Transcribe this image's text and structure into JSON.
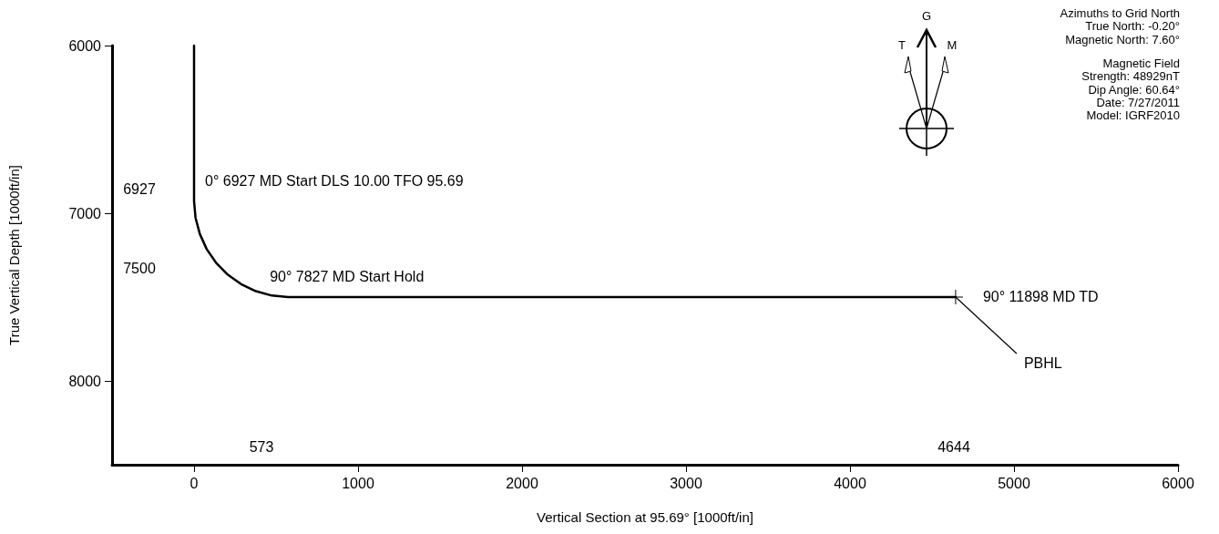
{
  "chart_data": {
    "type": "line",
    "xlabel": "Vertical Section at 95.69° [1000ft/in]",
    "ylabel": "True Vertical Depth [1000ft/in]",
    "x": [
      0,
      0,
      9,
      35,
      77,
      134,
      205,
      287,
      377,
      474,
      573,
      4644
    ],
    "values": [
      6000,
      6927,
      7027,
      7123,
      7214,
      7295,
      7366,
      7423,
      7465,
      7491,
      7500,
      7500
    ],
    "color": "#000000",
    "marker": "none",
    "line_style": "solid",
    "grid": false,
    "xlim": [
      -500,
      6000
    ],
    "xticks": [
      0,
      1000,
      2000,
      3000,
      4000,
      5000,
      6000
    ],
    "ylim": [
      8500,
      6000
    ],
    "yticks": [
      6000,
      7000,
      8000
    ],
    "annotations": [
      {
        "text": "0° 6927 MD Start DLS 10.00 TFO 95.69",
        "x": 0,
        "y": 6927
      },
      {
        "text": "90° 7827 MD Start Hold",
        "x": 573,
        "y": 7500
      },
      {
        "text": "90° 11898 MD TD",
        "x": 4644,
        "y": 7500
      },
      {
        "text": "PBHL",
        "x": 4644,
        "y": 7500
      },
      "6927",
      "7500",
      "573",
      "4644",
      "Azimuths to Grid North\nTrue North: -0.20°\nMagnetic North: 7.60°",
      "Magnetic Field\nStrength: 48929nT\nDip Angle: 60.64°\nDate: 7/27/2011\nModel: IGRF2010",
      "G",
      "T",
      "M"
    ]
  }
}
